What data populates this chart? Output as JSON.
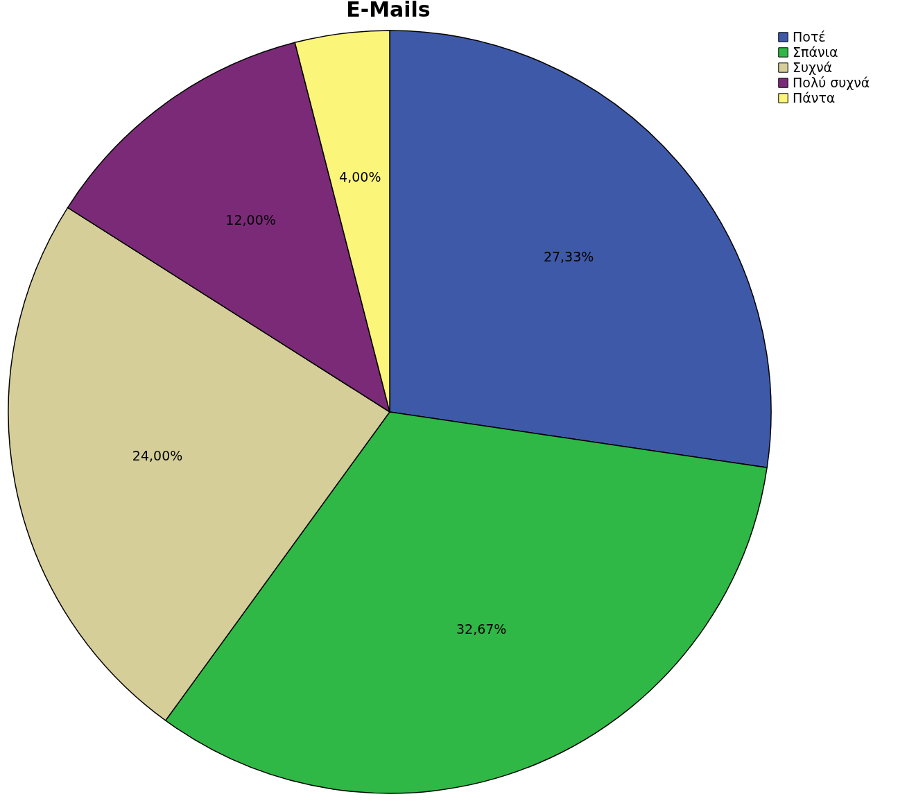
{
  "chart_data": {
    "type": "pie",
    "title": "E-Mails",
    "categories": [
      "Ποτέ",
      "Σπάνια",
      "Συχνά",
      "Πολύ συχνά",
      "Πάντα"
    ],
    "values": [
      27.33,
      32.67,
      24.0,
      12.0,
      4.0
    ],
    "value_labels": [
      "27,33%",
      "32,67%",
      "24,00%",
      "12,00%",
      "4,00%"
    ],
    "colors": [
      "#3f59a9",
      "#2fb845",
      "#d5ce98",
      "#7b2a78",
      "#fbf57a"
    ],
    "legend": "top right"
  }
}
